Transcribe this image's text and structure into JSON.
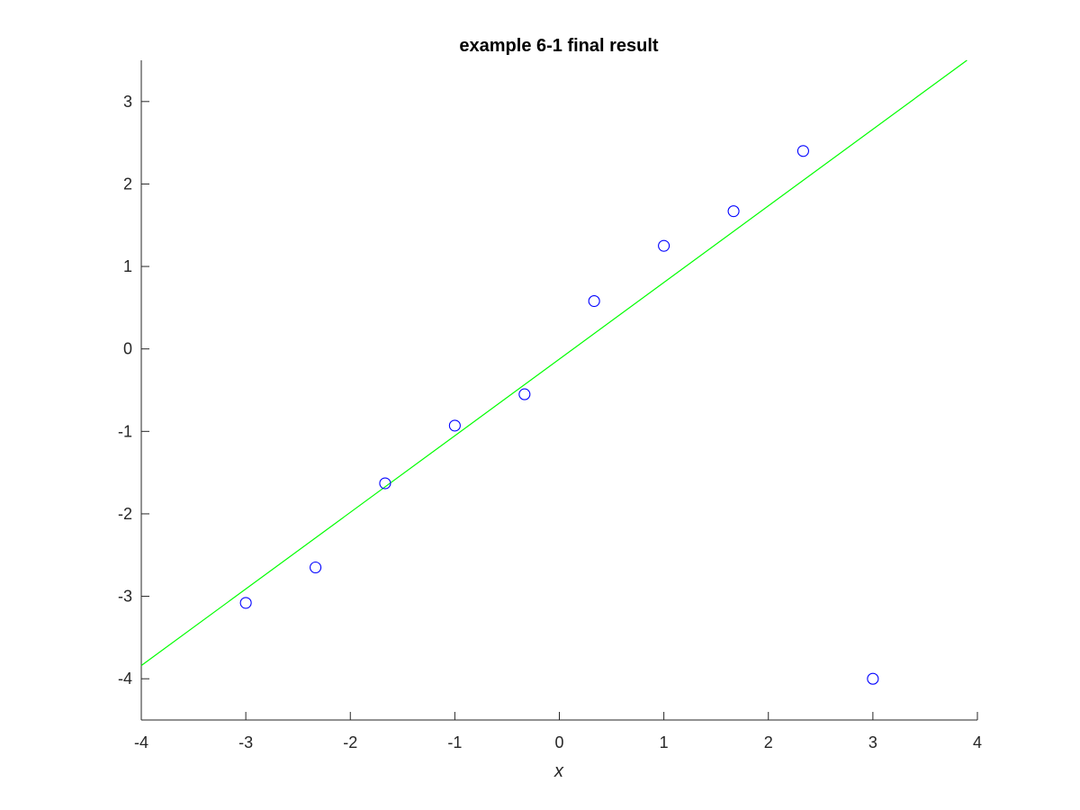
{
  "chart_data": {
    "type": "scatter",
    "title": "example 6-1 final result",
    "xlabel": "x",
    "ylabel": "",
    "xlim": [
      -4,
      4
    ],
    "ylim": [
      -4.5,
      3.5
    ],
    "xticks": [
      -4,
      -3,
      -2,
      -1,
      0,
      1,
      2,
      3,
      4
    ],
    "yticks": [
      -4,
      -3,
      -2,
      -1,
      0,
      1,
      2,
      3
    ],
    "xtick_labels": [
      "-4",
      "-3",
      "-2",
      "-1",
      "0",
      "1",
      "2",
      "3",
      "4"
    ],
    "ytick_labels": [
      "-4",
      "-3",
      "-2",
      "-1",
      "0",
      "1",
      "2",
      "3"
    ],
    "grid": false,
    "series": [
      {
        "kind": "scatter",
        "marker": "circle",
        "color": "#0000ff",
        "x": [
          -3.0,
          -2.333,
          -1.667,
          -1.0,
          -0.333,
          0.333,
          1.0,
          1.667,
          2.333,
          3.0
        ],
        "y": [
          -3.08,
          -2.65,
          -1.63,
          -0.93,
          -0.55,
          0.58,
          1.25,
          1.67,
          2.4,
          -4.0
        ]
      },
      {
        "kind": "line",
        "color": "#00ff00",
        "x": [
          -4,
          3.9
        ],
        "y": [
          -3.84,
          3.5
        ]
      }
    ]
  }
}
